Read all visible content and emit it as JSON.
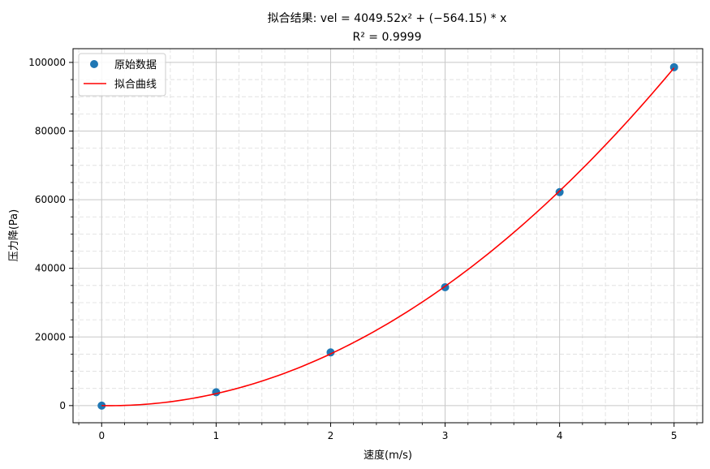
{
  "chart_data": {
    "type": "scatter",
    "title": "拟合结果: vel = 4049.52x² + (−564.15) * x",
    "subtitle": "R² = 0.9999",
    "xlabel": "速度(m/s)",
    "ylabel": "压力降(Pa)",
    "xlim": [
      -0.25,
      5.25
    ],
    "ylim": [
      -5000,
      104000
    ],
    "x_ticks": [
      0,
      1,
      2,
      3,
      4,
      5
    ],
    "y_ticks": [
      0,
      20000,
      40000,
      60000,
      80000,
      100000
    ],
    "grid": true,
    "minor_grid": true,
    "legend_position": "upper-left",
    "series": [
      {
        "name": "原始数据",
        "kind": "scatter",
        "color": "#1f77b4",
        "x": [
          0,
          1,
          2,
          3,
          4,
          5
        ],
        "y": [
          0,
          3900,
          15500,
          34500,
          62200,
          98600
        ]
      },
      {
        "name": "拟合曲线",
        "kind": "line",
        "color": "#ff0000",
        "equation": {
          "a": 4049.52,
          "b": -564.15,
          "c": 0
        },
        "x_range": [
          0,
          5
        ]
      }
    ]
  }
}
